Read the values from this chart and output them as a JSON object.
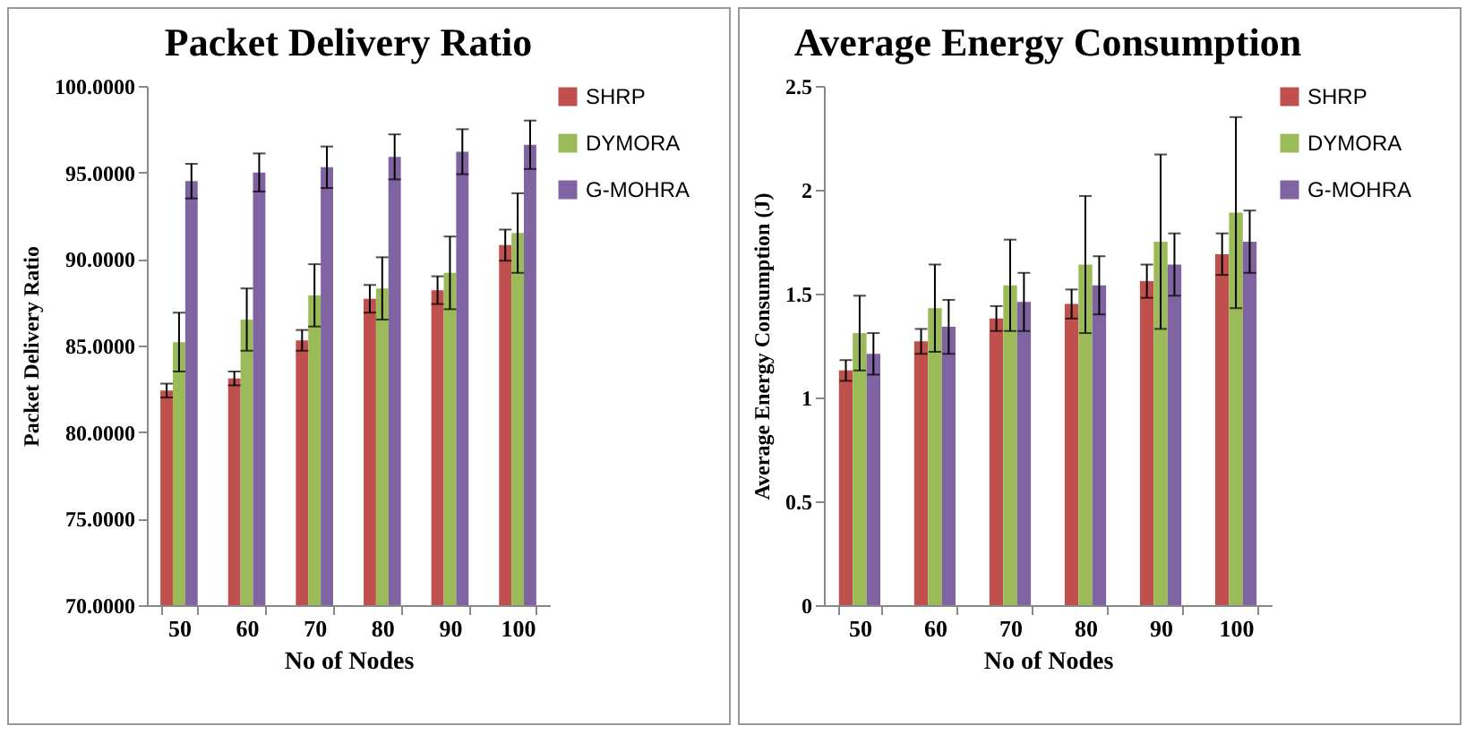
{
  "chart_data": [
    {
      "type": "bar",
      "title": "Packet Delivery Ratio",
      "xlabel": "No of Nodes",
      "ylabel": "Packet Delivery Ratio",
      "categories": [
        "50",
        "60",
        "70",
        "80",
        "90",
        "100"
      ],
      "series": [
        {
          "name": "SHRP",
          "color": "#c0504d",
          "values": [
            82.4,
            83.1,
            85.3,
            87.7,
            88.2,
            90.8
          ],
          "errors": [
            0.4,
            0.4,
            0.6,
            0.8,
            0.8,
            0.9
          ]
        },
        {
          "name": "DYMORA",
          "color": "#9bbb59",
          "values": [
            85.2,
            86.5,
            87.9,
            88.3,
            89.2,
            91.5
          ],
          "errors": [
            1.7,
            1.8,
            1.8,
            1.8,
            2.1,
            2.3
          ]
        },
        {
          "name": "G-MOHRA",
          "color": "#8064a2",
          "values": [
            94.5,
            95.0,
            95.3,
            95.9,
            96.2,
            96.6
          ],
          "errors": [
            1.0,
            1.1,
            1.2,
            1.3,
            1.3,
            1.4
          ]
        }
      ],
      "ylim": [
        70,
        100
      ],
      "yticks": [
        {
          "value": 70,
          "label": "70.0000"
        },
        {
          "value": 75,
          "label": "75.0000"
        },
        {
          "value": 80,
          "label": "80.0000"
        },
        {
          "value": 85,
          "label": "85.0000"
        },
        {
          "value": 90,
          "label": "90.0000"
        },
        {
          "value": 95,
          "label": "95.0000"
        },
        {
          "value": 100,
          "label": "100.0000"
        }
      ],
      "grid": false,
      "legend": "right"
    },
    {
      "type": "bar",
      "title": "Average Energy Consumption",
      "xlabel": "No of Nodes",
      "ylabel": "Average Energy Consumption (J)",
      "categories": [
        "50",
        "60",
        "70",
        "80",
        "90",
        "100"
      ],
      "series": [
        {
          "name": "SHRP",
          "color": "#c0504d",
          "values": [
            1.13,
            1.27,
            1.38,
            1.45,
            1.56,
            1.69
          ],
          "errors": [
            0.05,
            0.06,
            0.06,
            0.07,
            0.08,
            0.1
          ]
        },
        {
          "name": "DYMORA",
          "color": "#9bbb59",
          "values": [
            1.31,
            1.43,
            1.54,
            1.64,
            1.75,
            1.89
          ],
          "errors": [
            0.18,
            0.21,
            0.22,
            0.33,
            0.42,
            0.46
          ]
        },
        {
          "name": "G-MOHRA",
          "color": "#8064a2",
          "values": [
            1.21,
            1.34,
            1.46,
            1.54,
            1.64,
            1.75
          ],
          "errors": [
            0.1,
            0.13,
            0.14,
            0.14,
            0.15,
            0.15
          ]
        }
      ],
      "ylim": [
        0,
        2.5
      ],
      "yticks": [
        0,
        0.5,
        1,
        1.5,
        2,
        2.5
      ],
      "grid": false,
      "legend": "right"
    }
  ]
}
